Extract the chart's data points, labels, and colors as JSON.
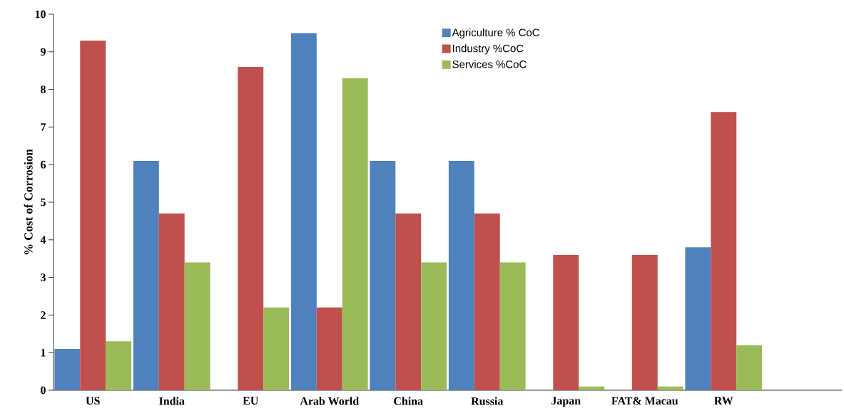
{
  "chart_data": {
    "type": "bar",
    "ylabel": "% Cost of Corrosion",
    "categories": [
      "US",
      "India",
      "EU",
      "Arab World",
      "China",
      "Russia",
      "Japan",
      "FAT& Macau",
      "RW",
      null
    ],
    "series": [
      {
        "name": "Agriculture % CoC",
        "color": "#4f81bd",
        "values": [
          1.1,
          6.1,
          null,
          9.5,
          6.1,
          6.1,
          null,
          null,
          3.8,
          null
        ]
      },
      {
        "name": "Industry %CoC",
        "color": "#c0504d",
        "values": [
          9.3,
          4.7,
          8.6,
          2.2,
          4.7,
          4.7,
          3.6,
          3.6,
          7.4,
          null
        ]
      },
      {
        "name": "Services %CoC",
        "color": "#9bbb59",
        "values": [
          1.3,
          3.4,
          2.2,
          8.3,
          3.4,
          3.4,
          0.1,
          0.1,
          1.2,
          null
        ]
      }
    ],
    "ylim": [
      0,
      10
    ],
    "yticks": [
      0,
      1,
      2,
      3,
      4,
      5,
      6,
      7,
      8,
      9,
      10
    ],
    "grid": false,
    "legend": "top"
  }
}
